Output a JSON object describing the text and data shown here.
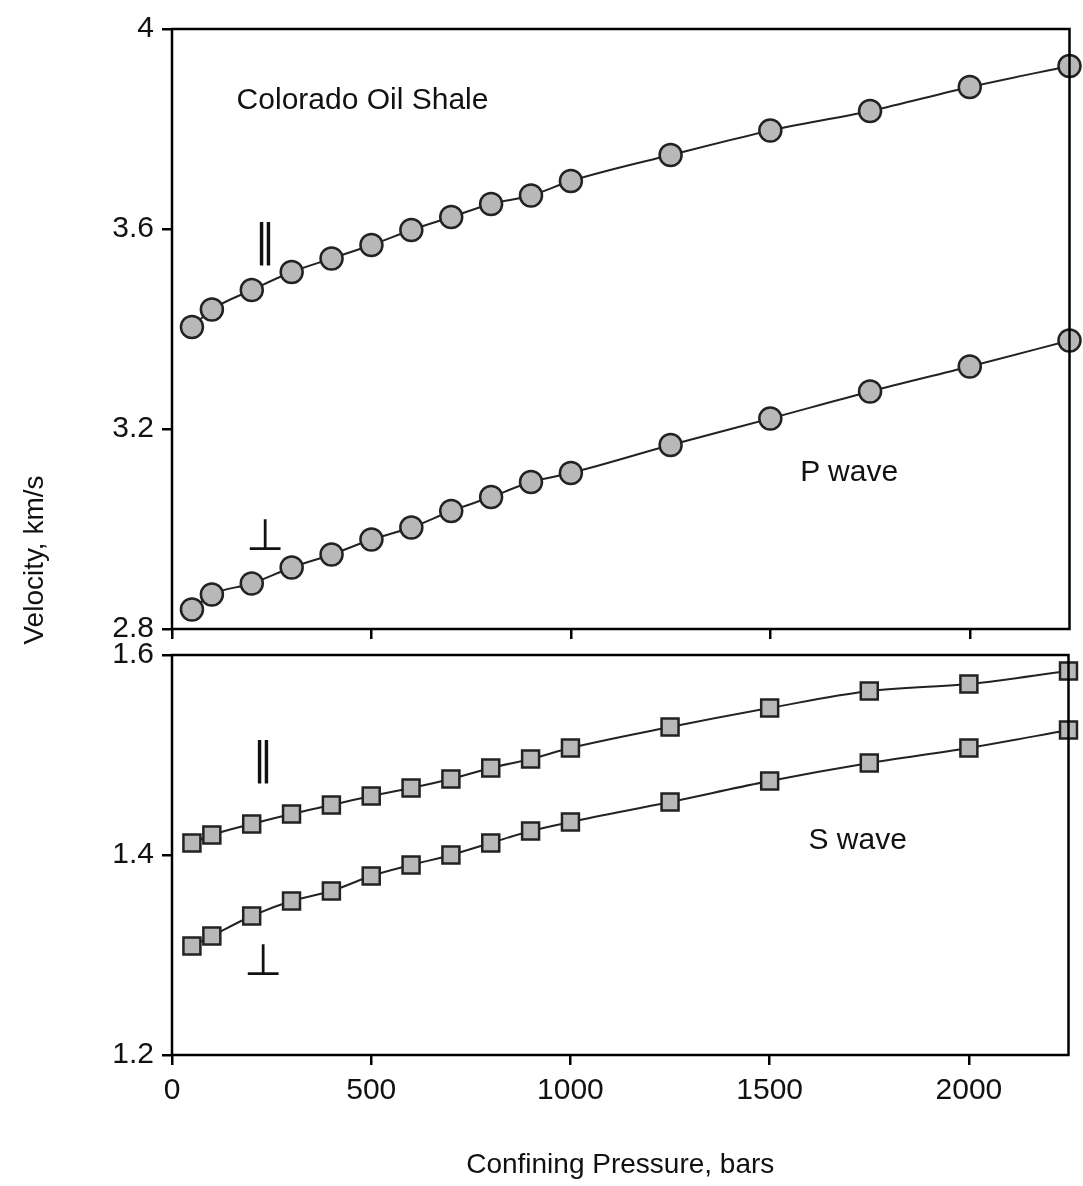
{
  "chart_data": [
    {
      "type": "line",
      "ylabel": "Velocity, km/s",
      "annotations": [
        "Colorado Oil Shale",
        "P wave"
      ],
      "x": [
        50,
        100,
        200,
        300,
        400,
        500,
        600,
        700,
        800,
        900,
        1000,
        1250,
        1500,
        1750,
        2000,
        2250
      ],
      "series": [
        {
          "name": "∥",
          "color": "#222222",
          "values": [
            3.404,
            3.439,
            3.478,
            3.514,
            3.541,
            3.568,
            3.598,
            3.624,
            3.65,
            3.667,
            3.696,
            3.748,
            3.797,
            3.836,
            3.884,
            3.926
          ]
        },
        {
          "name": "⊥",
          "color": "#222222",
          "values": [
            2.839,
            2.869,
            2.891,
            2.923,
            2.949,
            2.979,
            3.003,
            3.036,
            3.064,
            3.094,
            3.112,
            3.168,
            3.221,
            3.275,
            3.325,
            3.377
          ]
        }
      ],
      "xlim": [
        0,
        2250
      ],
      "xticks": [
        0,
        500,
        1000,
        1500,
        2000
      ],
      "ylim": [
        2.8,
        4
      ],
      "yticks": [
        2.8,
        3.2,
        3.6,
        4
      ],
      "tick_labels": "y",
      "marker": "circle",
      "line_style": "solid"
    },
    {
      "type": "line",
      "xlabel": "Confining Pressure, bars",
      "annotations": [
        "S wave"
      ],
      "x": [
        50,
        100,
        200,
        300,
        400,
        500,
        600,
        700,
        800,
        900,
        1000,
        1250,
        1500,
        1750,
        2000,
        2250
      ],
      "series": [
        {
          "name": "∥",
          "color": "#222222",
          "values": [
            1.412,
            1.42,
            1.431,
            1.441,
            1.45,
            1.459,
            1.467,
            1.476,
            1.487,
            1.496,
            1.507,
            1.528,
            1.547,
            1.564,
            1.571,
            1.584
          ]
        },
        {
          "name": "⊥",
          "color": "#222222",
          "values": [
            1.309,
            1.319,
            1.339,
            1.354,
            1.364,
            1.379,
            1.39,
            1.4,
            1.412,
            1.424,
            1.433,
            1.453,
            1.474,
            1.492,
            1.507,
            1.525
          ]
        }
      ],
      "xlim": [
        0,
        2250
      ],
      "xticks": [
        0,
        500,
        1000,
        1500,
        2000
      ],
      "ylim": [
        1.2,
        1.6
      ],
      "yticks": [
        1.2,
        1.4,
        1.6
      ],
      "marker": "square",
      "line_style": "solid"
    }
  ]
}
